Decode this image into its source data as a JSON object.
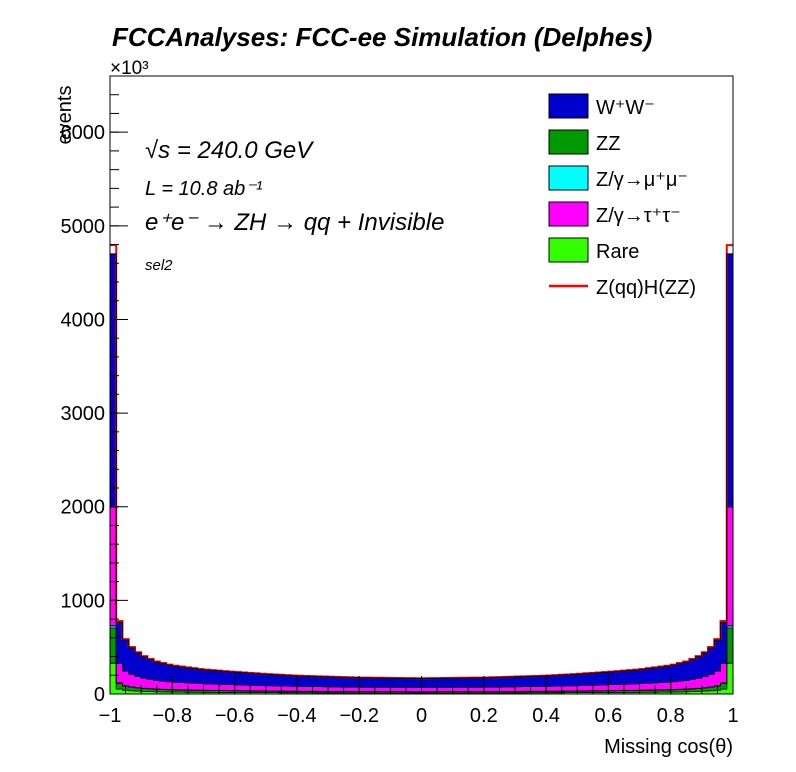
{
  "chart_data": {
    "type": "area",
    "stacked": true,
    "title": "FCCAnalyses: FCC-ee Simulation (Delphes)",
    "xlabel": "Missing cos(θ)",
    "ylabel": "events",
    "y_multiplier_label": "×10³",
    "xlim": [
      -1,
      1
    ],
    "ylim": [
      0,
      6600
    ],
    "x_ticks": [
      "−1",
      "−0.8",
      "−0.6",
      "−0.4",
      "−0.2",
      "0",
      "0.2",
      "0.4",
      "0.6",
      "0.8",
      "1"
    ],
    "y_ticks": [
      "0",
      "1000",
      "2000",
      "3000",
      "4000",
      "5000",
      "6000"
    ],
    "annotations": {
      "sqrt_s": "√s = 240.0 GeV",
      "lumi": "L = 10.8 ab⁻¹",
      "process": "e⁺e⁻ → ZH → qq + Invisible",
      "selection": "sel2"
    },
    "legend_position": "top-right",
    "series_colors": {
      "WW": "#0000cc",
      "ZZ": "#009900",
      "Zmumu": "#00ffff",
      "Ztautau": "#ff00ff",
      "Rare": "#33ff00",
      "signal": "#ff0000"
    },
    "legend": [
      {
        "key": "WW",
        "label": "W⁺W⁻",
        "style": "box"
      },
      {
        "key": "ZZ",
        "label": "ZZ",
        "style": "box"
      },
      {
        "key": "Zmumu",
        "label": "Z/γ→μ⁺μ⁻",
        "style": "box"
      },
      {
        "key": "Ztautau",
        "label": "Z/γ→τ⁺τ⁻",
        "style": "box"
      },
      {
        "key": "Rare",
        "label": "Rare",
        "style": "box"
      },
      {
        "key": "signal",
        "label": "Z(qq)H(ZZ)",
        "style": "line"
      }
    ],
    "binning": {
      "bins": 100,
      "min": -1,
      "max": 1
    },
    "profile_total": {
      "abs_cos": [
        0,
        0.2,
        0.4,
        0.5,
        0.6,
        0.7,
        0.8,
        0.85,
        0.9,
        0.94,
        0.96,
        0.98,
        0.99
      ],
      "total": [
        165,
        172,
        192,
        210,
        232,
        258,
        300,
        340,
        410,
        520,
        630,
        900,
        4700
      ]
    },
    "composition": {
      "Rare": 0.07,
      "ZZ": 0.08,
      "Zmumu": 0.005,
      "Ztautau": 0.27,
      "WW": 0.575
    }
  }
}
